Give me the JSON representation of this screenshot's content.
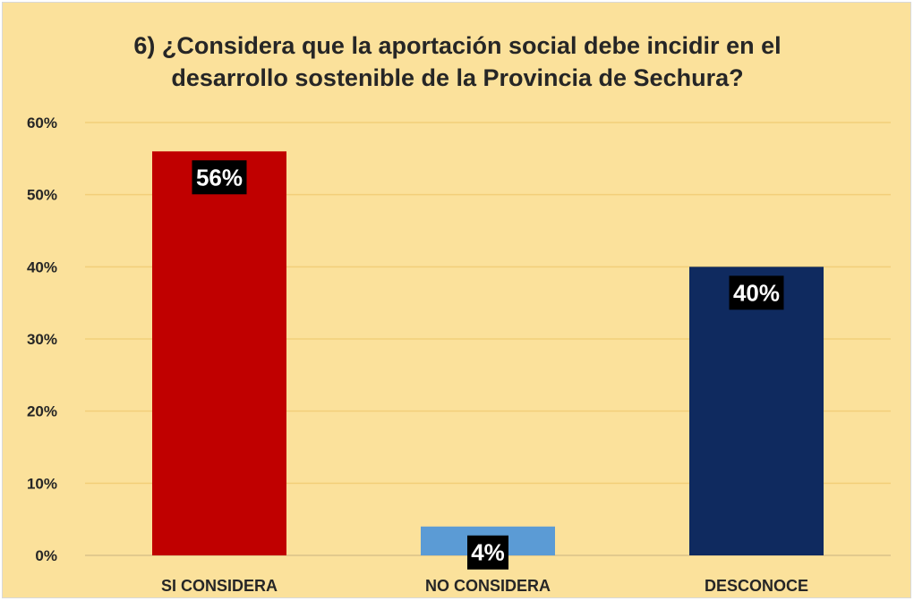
{
  "chart_data": {
    "type": "bar",
    "title": "6) ¿Considera que la aportación social debe incidir en el\ndesarrollo sostenible de la Provincia de Sechura?",
    "categories": [
      "SI CONSIDERA",
      "NO CONSIDERA",
      "DESCONOCE"
    ],
    "values": [
      56,
      4,
      40
    ],
    "value_labels": [
      "56%",
      "4%",
      "40%"
    ],
    "bar_colors": [
      "#c00000",
      "#5b9bd5",
      "#0f2a5f"
    ],
    "ylim": [
      0,
      60
    ],
    "yticks": [
      0,
      10,
      20,
      30,
      40,
      50,
      60
    ],
    "ytick_labels": [
      "0%",
      "10%",
      "20%",
      "30%",
      "40%",
      "50%",
      "60%"
    ],
    "xlabel": "",
    "ylabel": "",
    "grid": true,
    "legend": false,
    "background_color": "#fbe19b",
    "gridline_color": "#f2cf7a",
    "data_label_box_color": "#000000"
  }
}
